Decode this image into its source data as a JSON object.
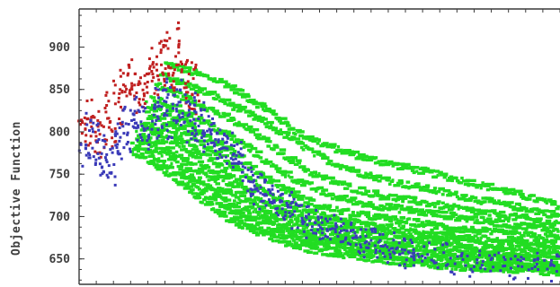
{
  "chart_data": {
    "type": "scatter",
    "title": "",
    "xlabel": "",
    "ylabel": "Objective Function",
    "ylim": [
      620,
      945
    ],
    "xlim": [
      0,
      100
    ],
    "grid": false,
    "legend": "none",
    "y_ticks": [
      {
        "value": 900,
        "label": "900"
      },
      {
        "value": 850,
        "label": "850"
      },
      {
        "value": 800,
        "label": "800"
      },
      {
        "value": 750,
        "label": "750"
      },
      {
        "value": 700,
        "label": "700"
      },
      {
        "value": 650,
        "label": "650"
      }
    ],
    "x_tick_count": 28,
    "series": [
      {
        "color": "#c02020",
        "points": [
          [
            0.5,
            800
          ],
          [
            1.2,
            815
          ],
          [
            1.9,
            790
          ],
          [
            2.4,
            825
          ],
          [
            3.1,
            805
          ],
          [
            3.8,
            780
          ],
          [
            4.5,
            818
          ],
          [
            5.1,
            795
          ],
          [
            5.8,
            835
          ],
          [
            6.4,
            812
          ],
          [
            7.0,
            790
          ],
          [
            7.6,
            848
          ],
          [
            8.3,
            822
          ],
          [
            9.0,
            860
          ],
          [
            9.6,
            838
          ],
          [
            10.3,
            872
          ],
          [
            10.9,
            845
          ],
          [
            11.5,
            858
          ],
          [
            12.2,
            830
          ],
          [
            12.9,
            850
          ],
          [
            13.5,
            862
          ],
          [
            14.1,
            840
          ],
          [
            14.8,
            870
          ],
          [
            15.4,
            885
          ],
          [
            16.0,
            855
          ],
          [
            16.7,
            878
          ],
          [
            17.3,
            895
          ],
          [
            18.0,
            868
          ],
          [
            18.6,
            905
          ],
          [
            19.3,
            880
          ],
          [
            19.9,
            862
          ],
          [
            20.5,
            890
          ],
          [
            21.1,
            915
          ],
          [
            21.8,
            875
          ],
          [
            22.4,
            858
          ],
          [
            23.0,
            840
          ],
          [
            23.6,
            872
          ],
          [
            24.3,
            835
          ]
        ]
      },
      {
        "color": "#3a3ab8",
        "points": [
          [
            0.8,
            788
          ],
          [
            1.5,
            770
          ],
          [
            2.2,
            810
          ],
          [
            2.9,
            775
          ],
          [
            3.5,
            798
          ],
          [
            4.2,
            762
          ],
          [
            4.9,
            782
          ],
          [
            5.5,
            758
          ],
          [
            6.2,
            773
          ],
          [
            6.8,
            750
          ],
          [
            7.5,
            785
          ],
          [
            8.1,
            805
          ],
          [
            8.7,
            780
          ],
          [
            9.4,
            818
          ],
          [
            10.1,
            790
          ],
          [
            10.7,
            805
          ],
          [
            11.4,
            828
          ],
          [
            12.0,
            815
          ],
          [
            12.6,
            800
          ],
          [
            13.3,
            820
          ],
          [
            13.9,
            808
          ],
          [
            14.6,
            790
          ],
          [
            15.2,
            825
          ],
          [
            15.8,
            805
          ],
          [
            16.5,
            840
          ],
          [
            17.1,
            818
          ],
          [
            17.8,
            852
          ],
          [
            18.4,
            832
          ],
          [
            19.0,
            800
          ],
          [
            19.7,
            845
          ],
          [
            20.3,
            826
          ],
          [
            20.9,
            812
          ],
          [
            21.6,
            848
          ],
          [
            22.2,
            822
          ],
          [
            22.8,
            800
          ],
          [
            23.5,
            838
          ],
          [
            24.1,
            815
          ],
          [
            24.8,
            797
          ],
          [
            25.4,
            825
          ],
          [
            26.0,
            806
          ],
          [
            26.7,
            790
          ],
          [
            27.3,
            812
          ],
          [
            28.0,
            795
          ],
          [
            28.6,
            778
          ],
          [
            29.2,
            800
          ],
          [
            29.9,
            785
          ],
          [
            30.5,
            770
          ],
          [
            31.2,
            790
          ],
          [
            31.8,
            775
          ],
          [
            32.5,
            760
          ],
          [
            33.1,
            778
          ],
          [
            33.8,
            765
          ],
          [
            34.5,
            750
          ],
          [
            35.2,
            735
          ],
          [
            35.9,
            745
          ],
          [
            36.6,
            728
          ],
          [
            37.3,
            740
          ],
          [
            38.0,
            722
          ],
          [
            38.8,
            735
          ],
          [
            39.5,
            718
          ],
          [
            40.3,
            728
          ],
          [
            41.0,
            710
          ],
          [
            41.8,
            722
          ],
          [
            42.6,
            705
          ],
          [
            43.4,
            715
          ],
          [
            44.2,
            698
          ],
          [
            45.0,
            708
          ],
          [
            46.0,
            692
          ],
          [
            47.0,
            702
          ],
          [
            48.0,
            688
          ],
          [
            49.0,
            698
          ],
          [
            50.0,
            682
          ],
          [
            51.0,
            692
          ],
          [
            52.0,
            678
          ],
          [
            53.0,
            688
          ],
          [
            54.0,
            675
          ],
          [
            55.0,
            684
          ],
          [
            56.0,
            670
          ],
          [
            57.0,
            680
          ],
          [
            58.0,
            668
          ],
          [
            59.0,
            676
          ],
          [
            60.0,
            664
          ],
          [
            61.0,
            672
          ],
          [
            62.0,
            660
          ],
          [
            63.0,
            670
          ],
          [
            64.0,
            658
          ],
          [
            65.0,
            668
          ],
          [
            66.0,
            655
          ],
          [
            67.0,
            664
          ],
          [
            68.0,
            652
          ],
          [
            69.0,
            662
          ],
          [
            70.0,
            650
          ],
          [
            72.0,
            660
          ],
          [
            74.0,
            648
          ],
          [
            76.0,
            656
          ],
          [
            78.0,
            645
          ],
          [
            80.0,
            654
          ],
          [
            82.0,
            643
          ],
          [
            84.0,
            652
          ],
          [
            86.0,
            642
          ],
          [
            88.0,
            650
          ],
          [
            90.0,
            640
          ],
          [
            92.0,
            648
          ],
          [
            94.0,
            638
          ],
          [
            96.0,
            646
          ],
          [
            98.0,
            636
          ],
          [
            99.5,
            644
          ]
        ]
      },
      {
        "color": "#22dd22",
        "lines": [
          [
            [
              18,
              880
            ],
            [
              30,
              858
            ],
            [
              40,
              822
            ],
            [
              45,
              800
            ],
            [
              52,
              782
            ],
            [
              60,
              768
            ],
            [
              70,
              755
            ],
            [
              80,
              742
            ],
            [
              90,
              728
            ],
            [
              100,
              712
            ]
          ],
          [
            [
              17,
              868
            ],
            [
              28,
              842
            ],
            [
              38,
              812
            ],
            [
              44,
              792
            ],
            [
              50,
              770
            ],
            [
              58,
              752
            ],
            [
              66,
              740
            ],
            [
              76,
              728
            ],
            [
              86,
              716
            ],
            [
              94,
              708
            ],
            [
              100,
              700
            ]
          ],
          [
            [
              16,
              855
            ],
            [
              26,
              830
            ],
            [
              36,
              800
            ],
            [
              42,
              775
            ],
            [
              48,
              752
            ],
            [
              55,
              736
            ],
            [
              63,
              724
            ],
            [
              72,
              716
            ],
            [
              82,
              706
            ],
            [
              92,
              698
            ],
            [
              100,
              690
            ]
          ],
          [
            [
              15,
              840
            ],
            [
              25,
              815
            ],
            [
              34,
              785
            ],
            [
              40,
              760
            ],
            [
              46,
              740
            ],
            [
              52,
              725
            ],
            [
              60,
              714
            ],
            [
              70,
              706
            ],
            [
              80,
              698
            ],
            [
              90,
              690
            ],
            [
              100,
              684
            ]
          ],
          [
            [
              14,
              832
            ],
            [
              23,
              808
            ],
            [
              32,
              775
            ],
            [
              38,
              748
            ],
            [
              44,
              728
            ],
            [
              50,
              712
            ],
            [
              58,
              702
            ],
            [
              68,
              694
            ],
            [
              78,
              686
            ],
            [
              88,
              680
            ],
            [
              100,
              674
            ]
          ],
          [
            [
              14,
              820
            ],
            [
              22,
              800
            ],
            [
              30,
              768
            ],
            [
              36,
              740
            ],
            [
              42,
              718
            ],
            [
              48,
              704
            ],
            [
              56,
              694
            ],
            [
              66,
              686
            ],
            [
              76,
              678
            ],
            [
              86,
              672
            ],
            [
              100,
              666
            ]
          ],
          [
            [
              13,
              812
            ],
            [
              21,
              792
            ],
            [
              29,
              760
            ],
            [
              35,
              732
            ],
            [
              40,
              712
            ],
            [
              46,
              698
            ],
            [
              54,
              688
            ],
            [
              64,
              680
            ],
            [
              74,
              672
            ],
            [
              84,
              666
            ],
            [
              100,
              660
            ]
          ],
          [
            [
              13,
              805
            ],
            [
              20,
              786
            ],
            [
              28,
              752
            ],
            [
              34,
              726
            ],
            [
              39,
              706
            ],
            [
              45,
              692
            ],
            [
              52,
              682
            ],
            [
              62,
              674
            ],
            [
              72,
              667
            ],
            [
              82,
              661
            ],
            [
              100,
              654
            ]
          ],
          [
            [
              12,
              798
            ],
            [
              19,
              778
            ],
            [
              27,
              745
            ],
            [
              33,
              718
            ],
            [
              38,
              700
            ],
            [
              44,
              686
            ],
            [
              50,
              676
            ],
            [
              60,
              668
            ],
            [
              70,
              662
            ],
            [
              80,
              656
            ],
            [
              100,
              648
            ]
          ],
          [
            [
              12,
              790
            ],
            [
              18,
              772
            ],
            [
              26,
              738
            ],
            [
              32,
              712
            ],
            [
              37,
              695
            ],
            [
              43,
              682
            ],
            [
              49,
              672
            ],
            [
              58,
              664
            ],
            [
              68,
              657
            ],
            [
              78,
              651
            ],
            [
              100,
              642
            ]
          ],
          [
            [
              11,
              784
            ],
            [
              17,
              765
            ],
            [
              25,
              732
            ],
            [
              31,
              706
            ],
            [
              36,
              690
            ],
            [
              42,
              677
            ],
            [
              48,
              667
            ],
            [
              56,
              659
            ],
            [
              66,
              652
            ],
            [
              76,
              646
            ],
            [
              100,
              638
            ]
          ],
          [
            [
              11,
              778
            ],
            [
              16,
              760
            ],
            [
              24,
              726
            ],
            [
              30,
              700
            ],
            [
              35,
              685
            ],
            [
              41,
              672
            ],
            [
              47,
              662
            ],
            [
              55,
              655
            ],
            [
              64,
              648
            ],
            [
              74,
              642
            ],
            [
              100,
              634
            ]
          ]
        ]
      }
    ]
  }
}
